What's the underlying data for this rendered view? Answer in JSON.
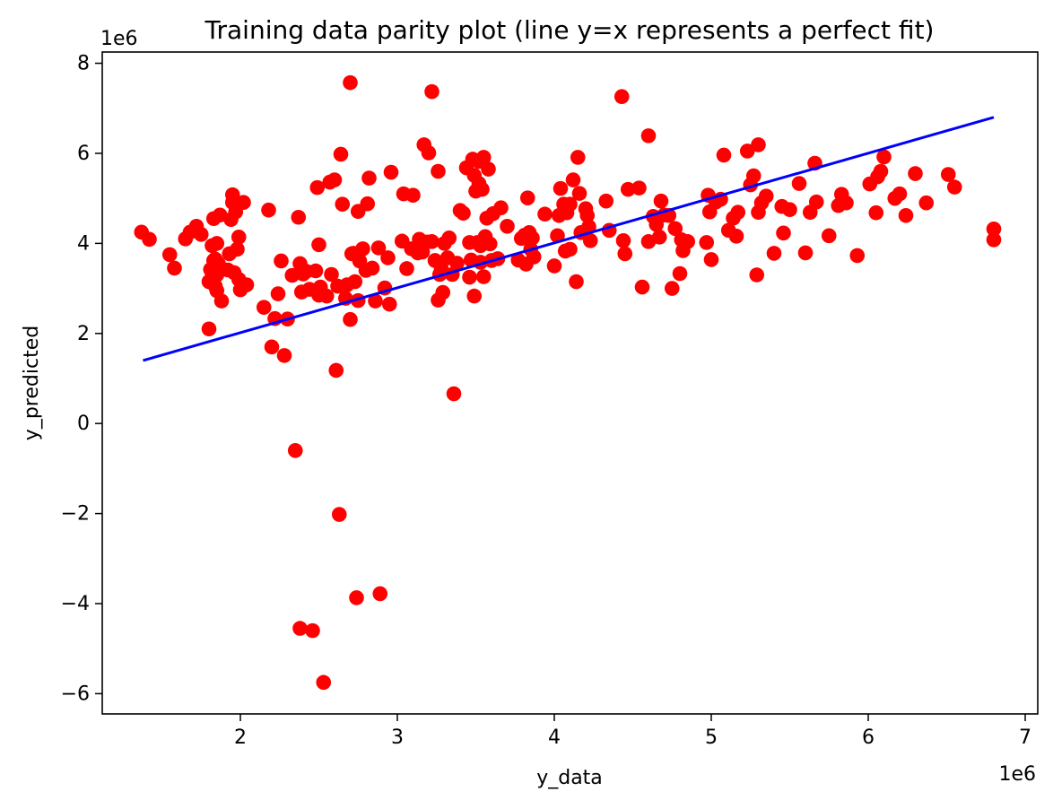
{
  "chart_data": {
    "type": "scatter",
    "title": "Training data parity plot (line y=x represents a perfect fit)",
    "xlabel": "y_data",
    "ylabel": "y_predicted",
    "x_offset_label": "1e6",
    "y_offset_label": "1e6",
    "xlim": [
      1.12,
      7.08
    ],
    "ylim": [
      -6.45,
      8.25
    ],
    "x_ticks": [
      2,
      3,
      4,
      5,
      6,
      7
    ],
    "x_tick_labels": [
      "2",
      "3",
      "4",
      "5",
      "6",
      "7"
    ],
    "y_ticks": [
      -6,
      -4,
      -2,
      0,
      2,
      4,
      6,
      8
    ],
    "y_tick_labels": [
      "−6",
      "−4",
      "−2",
      "0",
      "2",
      "4",
      "6",
      "8"
    ],
    "grid": false,
    "legend": "none",
    "colors": {
      "points": "#ff0000",
      "line": "#0000ff"
    },
    "series": [
      {
        "type": "line",
        "x": [
          1.38,
          6.8
        ],
        "y": [
          1.4,
          6.8
        ]
      },
      {
        "type": "scatter",
        "x": [
          1.37,
          1.42,
          1.55,
          1.58,
          1.65,
          1.68,
          1.72,
          1.75,
          1.8,
          1.8,
          1.81,
          1.82,
          1.82,
          1.83,
          1.83,
          1.84,
          1.84,
          1.84,
          1.85,
          1.85,
          1.85,
          1.86,
          1.87,
          1.88,
          1.92,
          1.93,
          1.94,
          1.95,
          1.95,
          1.96,
          1.97,
          1.98,
          1.99,
          1.99,
          2.0,
          2.02,
          2.04,
          2.15,
          2.18,
          2.2,
          2.22,
          2.24,
          2.26,
          2.28,
          2.3,
          2.33,
          2.35,
          2.37,
          2.38,
          2.38,
          2.39,
          2.4,
          2.42,
          2.44,
          2.46,
          2.48,
          2.49,
          2.5,
          2.5,
          2.51,
          2.53,
          2.55,
          2.57,
          2.58,
          2.6,
          2.61,
          2.62,
          2.63,
          2.64,
          2.65,
          2.67,
          2.68,
          2.7,
          2.7,
          2.71,
          2.72,
          2.73,
          2.74,
          2.75,
          2.75,
          2.76,
          2.78,
          2.8,
          2.81,
          2.82,
          2.84,
          2.86,
          2.88,
          2.89,
          2.92,
          2.94,
          2.95,
          2.96,
          3.03,
          3.04,
          3.06,
          3.09,
          3.1,
          3.13,
          3.14,
          3.16,
          3.17,
          3.19,
          3.2,
          3.22,
          3.22,
          3.24,
          3.26,
          3.26,
          3.27,
          3.28,
          3.29,
          3.3,
          3.32,
          3.33,
          3.35,
          3.36,
          3.38,
          3.4,
          3.42,
          3.44,
          3.46,
          3.46,
          3.47,
          3.48,
          3.49,
          3.49,
          3.5,
          3.51,
          3.52,
          3.52,
          3.53,
          3.53,
          3.54,
          3.55,
          3.55,
          3.56,
          3.57,
          3.58,
          3.59,
          3.6,
          3.61,
          3.64,
          3.66,
          3.7,
          3.77,
          3.79,
          3.81,
          3.82,
          3.83,
          3.84,
          3.85,
          3.86,
          3.87,
          3.94,
          4.0,
          4.02,
          4.03,
          4.04,
          4.06,
          4.07,
          4.08,
          4.1,
          4.1,
          4.12,
          4.14,
          4.15,
          4.16,
          4.17,
          4.2,
          4.21,
          4.22,
          4.23,
          4.33,
          4.35,
          4.43,
          4.44,
          4.45,
          4.47,
          4.54,
          4.56,
          4.6,
          4.6,
          4.63,
          4.65,
          4.67,
          4.68,
          4.7,
          4.73,
          4.75,
          4.77,
          4.8,
          4.81,
          4.82,
          4.85,
          4.97,
          4.98,
          4.99,
          5.0,
          5.03,
          5.06,
          5.08,
          5.11,
          5.14,
          5.16,
          5.17,
          5.23,
          5.25,
          5.27,
          5.29,
          5.3,
          5.3,
          5.32,
          5.35,
          5.4,
          5.45,
          5.46,
          5.5,
          5.56,
          5.6,
          5.63,
          5.66,
          5.67,
          5.75,
          5.81,
          5.83,
          5.86,
          5.93,
          6.01,
          6.05,
          6.06,
          6.08,
          6.1,
          6.17,
          6.2,
          6.24,
          6.3,
          6.37,
          6.51,
          6.55,
          6.8,
          6.8
        ],
        "y": [
          4.25,
          4.09,
          3.75,
          3.45,
          4.1,
          4.25,
          4.38,
          4.2,
          3.15,
          2.1,
          3.42,
          3.95,
          3.25,
          3.62,
          4.55,
          3.42,
          3.65,
          3.05,
          3.3,
          4.0,
          2.95,
          3.55,
          4.63,
          2.72,
          3.41,
          3.77,
          4.53,
          4.91,
          5.08,
          3.35,
          4.7,
          3.87,
          3.2,
          4.14,
          2.97,
          4.91,
          3.08,
          2.58,
          4.74,
          1.7,
          2.33,
          2.88,
          3.61,
          1.51,
          2.32,
          3.29,
          -0.6,
          4.58,
          3.55,
          -4.55,
          2.92,
          3.32,
          3.38,
          2.98,
          -4.6,
          3.39,
          5.24,
          3.97,
          2.85,
          3.03,
          -5.75,
          2.83,
          5.36,
          3.31,
          5.41,
          1.18,
          3.05,
          -2.02,
          5.98,
          4.87,
          2.78,
          3.08,
          7.57,
          2.31,
          3.77,
          3.78,
          3.15,
          -3.87,
          4.71,
          2.73,
          3.61,
          3.88,
          3.4,
          4.88,
          5.45,
          3.45,
          2.72,
          3.9,
          -3.78,
          3.01,
          3.68,
          2.65,
          5.58,
          4.05,
          5.1,
          3.44,
          3.88,
          5.07,
          3.79,
          4.09,
          3.81,
          6.19,
          4.03,
          6.01,
          7.37,
          4.04,
          3.62,
          5.6,
          2.74,
          3.31,
          3.44,
          2.91,
          4.0,
          3.68,
          4.12,
          3.31,
          0.66,
          3.56,
          4.73,
          4.67,
          5.68,
          4.02,
          3.25,
          3.63,
          5.87,
          2.83,
          5.51,
          5.16,
          4.02,
          5.82,
          5.33,
          3.58,
          3.95,
          5.2,
          3.26,
          5.91,
          4.15,
          4.56,
          5.65,
          3.99,
          3.62,
          4.66,
          3.66,
          4.79,
          4.38,
          3.63,
          4.11,
          4.18,
          3.54,
          5.01,
          4.24,
          3.87,
          4.12,
          3.7,
          4.65,
          3.5,
          4.17,
          4.62,
          5.22,
          4.87,
          3.83,
          4.68,
          3.87,
          4.87,
          5.41,
          3.15,
          5.91,
          5.11,
          4.24,
          4.77,
          4.62,
          4.37,
          4.06,
          4.94,
          4.29,
          7.26,
          4.06,
          3.77,
          5.2,
          5.23,
          3.03,
          6.39,
          4.04,
          4.6,
          4.42,
          4.14,
          4.94,
          4.63,
          4.62,
          3.0,
          4.33,
          3.33,
          4.08,
          3.84,
          4.04,
          4.02,
          5.07,
          4.7,
          3.64,
          4.92,
          4.98,
          5.96,
          4.29,
          4.56,
          4.16,
          4.69,
          6.05,
          5.3,
          5.5,
          3.3,
          4.69,
          6.19,
          4.9,
          5.05,
          3.78,
          4.82,
          4.23,
          4.75,
          5.33,
          3.79,
          4.69,
          5.78,
          4.92,
          4.17,
          4.84,
          5.09,
          4.9,
          3.73,
          5.32,
          4.68,
          5.48,
          5.6,
          5.92,
          5.0,
          5.1,
          4.62,
          5.55,
          4.9,
          5.53,
          5.25,
          4.32,
          4.08
        ]
      }
    ]
  }
}
